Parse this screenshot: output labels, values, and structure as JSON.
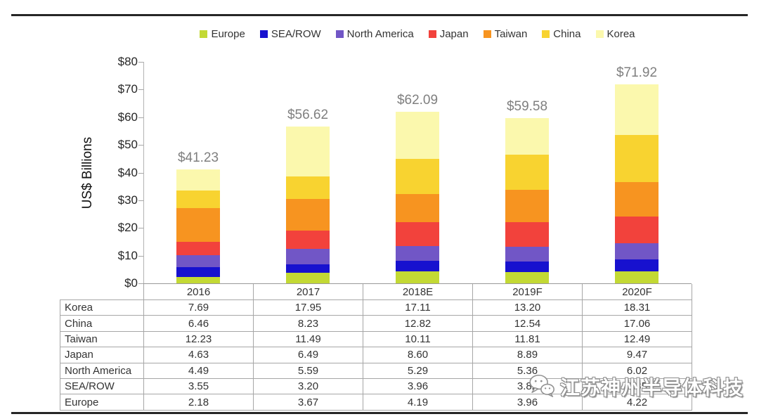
{
  "page": {
    "background": "#ffffff",
    "rule_color": "#262626"
  },
  "chart_data": {
    "type": "bar",
    "stacked": true,
    "title": "",
    "xlabel": "",
    "ylabel": "US$ Billions",
    "ylim": [
      0,
      80
    ],
    "y_tick_labels": [
      "$0",
      "$10",
      "$20",
      "$30",
      "$40",
      "$50",
      "$60",
      "$70",
      "$80"
    ],
    "grid": false,
    "legend_position": "top",
    "categories": [
      "2016",
      "2017",
      "2018E",
      "2019F",
      "2020F"
    ],
    "series": [
      {
        "name": "Europe",
        "color": "#c3d934",
        "values": [
          2.18,
          3.67,
          4.19,
          3.96,
          4.22
        ]
      },
      {
        "name": "SEA/ROW",
        "color": "#1711cf",
        "values": [
          3.55,
          3.2,
          3.96,
          3.82,
          4.35
        ]
      },
      {
        "name": "North America",
        "color": "#7156c6",
        "values": [
          4.49,
          5.59,
          5.29,
          5.36,
          6.02
        ]
      },
      {
        "name": "Japan",
        "color": "#f2423c",
        "values": [
          4.63,
          6.49,
          8.6,
          8.89,
          9.47
        ]
      },
      {
        "name": "Taiwan",
        "color": "#f79420",
        "values": [
          12.23,
          11.49,
          10.11,
          11.81,
          12.49
        ]
      },
      {
        "name": "China",
        "color": "#f8d330",
        "values": [
          6.46,
          8.23,
          12.82,
          12.54,
          17.06
        ]
      },
      {
        "name": "Korea",
        "color": "#fbf8ad",
        "values": [
          7.69,
          17.95,
          17.11,
          13.2,
          18.31
        ]
      }
    ],
    "totals_labels": [
      "$41.23",
      "$56.62",
      "$62.09",
      "$59.58",
      "$71.92"
    ]
  },
  "table": {
    "header": [
      "",
      "2016",
      "2017",
      "2018E",
      "2019F",
      "2020F"
    ],
    "rows": [
      {
        "label": "Korea",
        "values": [
          "7.69",
          "17.95",
          "17.11",
          "13.20",
          "18.31"
        ]
      },
      {
        "label": "China",
        "values": [
          "6.46",
          "8.23",
          "12.82",
          "12.54",
          "17.06"
        ]
      },
      {
        "label": "Taiwan",
        "values": [
          "12.23",
          "11.49",
          "10.11",
          "11.81",
          "12.49"
        ]
      },
      {
        "label": "Japan",
        "values": [
          "4.63",
          "6.49",
          "8.60",
          "8.89",
          "9.47"
        ]
      },
      {
        "label": "North America",
        "values": [
          "4.49",
          "5.59",
          "5.29",
          "5.36",
          "6.02"
        ]
      },
      {
        "label": "SEA/ROW",
        "values": [
          "3.55",
          "3.20",
          "3.96",
          "3.82",
          "4.35"
        ]
      },
      {
        "label": "Europe",
        "values": [
          "2.18",
          "3.67",
          "4.19",
          "3.96",
          "4.22"
        ]
      }
    ]
  },
  "watermark": {
    "icon": "wechat-icon",
    "text": "江苏神州半导体科技"
  }
}
